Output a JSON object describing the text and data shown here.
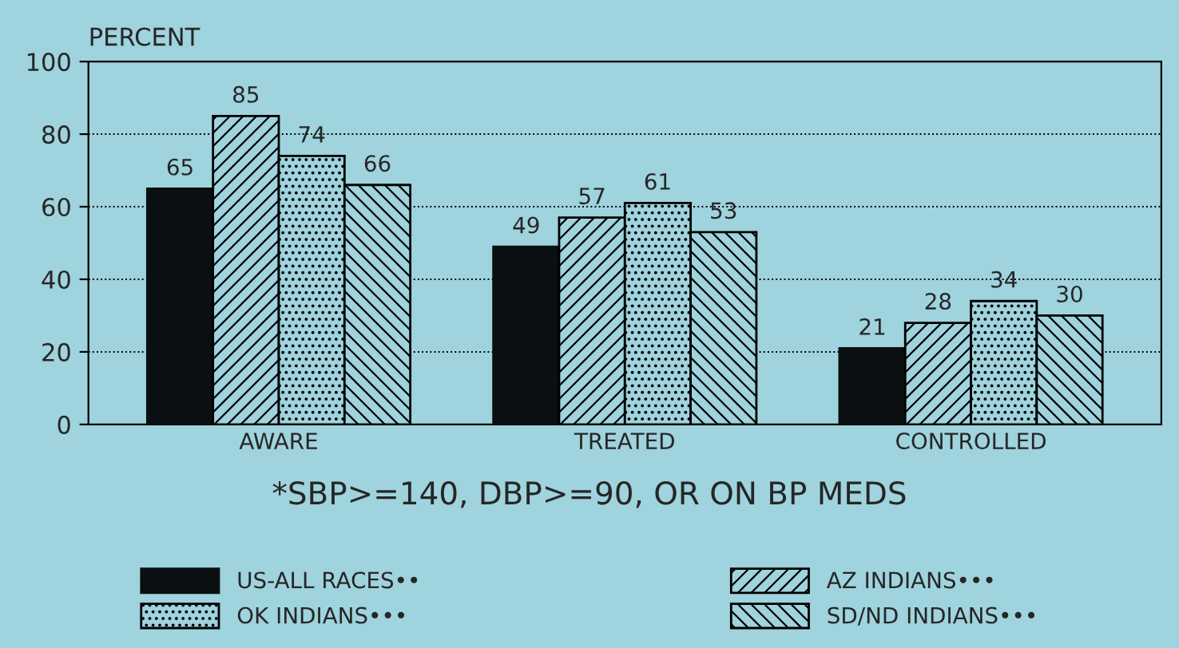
{
  "chart_data": {
    "type": "bar",
    "ylabel": "PERCENT",
    "categories": [
      "AWARE",
      "TREATED",
      "CONTROLLED"
    ],
    "series": [
      {
        "name": "US-ALL RACES••",
        "color": "#0a0f12",
        "values": [
          65,
          49,
          21
        ]
      },
      {
        "name": "AZ INDIANS•••",
        "color": "#000000",
        "values": [
          85,
          57,
          28
        ]
      },
      {
        "name": "OK INDIANS•••",
        "color": "#000000",
        "values": [
          74,
          61,
          34
        ]
      },
      {
        "name": "SD/ND INDIANS•••",
        "color": "#000000",
        "values": [
          66,
          53,
          30
        ]
      }
    ],
    "ylim": [
      0,
      100
    ],
    "yticks": [
      0,
      20,
      40,
      60,
      80,
      100
    ],
    "grid": "y",
    "legend": "bottom",
    "data_labels": true,
    "annotations": [
      "*SBP>=140, DBP>=90, OR ON BP MEDS"
    ]
  }
}
